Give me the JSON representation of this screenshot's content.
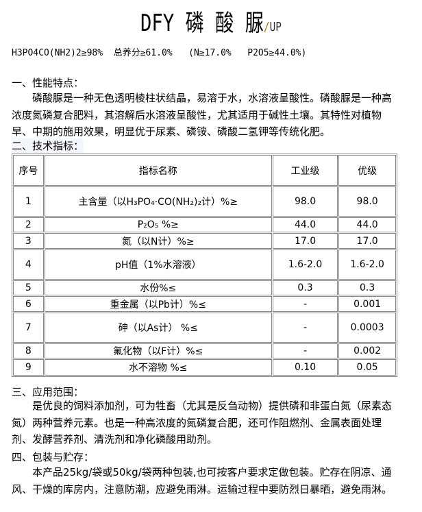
{
  "title": {
    "prefix": "DFY",
    "name": "磷 酸 脲",
    "suffix": "UP"
  },
  "spec_line": "H3PO4CO(NH2)2≥98%  总养分≥61.0%   (N≥17.0%   P2O5≥44.0%)",
  "sections": {
    "s1_heading": "一、性能特点：",
    "s1_text": "磷酸脲是一种无色透明棱柱状结晶，易溶于水，水溶液呈酸性。磷酸脲是一种高浓度氮磷复合肥料，其溶解后水溶液呈酸性，尤其适用于碱性土壤。其特性对植物早、中期的施用效果，明显优于尿素、磷铵、磷酸二氢钾等传统化肥。",
    "s2_heading": "二、技术指标：",
    "s3_heading": "三、应用范围：",
    "s3_text": "是优良的饲料添加剂，可为牲畜（尤其是反刍动物）提供磷和非蛋白氮（尿素态氮）两种营养元素。也是一种高浓度的氮磷复合肥，还可作阻燃剂、金属表面处理剂、发酵营养剂、清洗剂和净化磷酸用助剂。",
    "s4_heading": "四、包装与贮存：",
    "s4_text": "本产品25kg/袋或50kg/袋两种包装,也可按客户要求定做包装。贮存在阴凉、通风、干燥的库房内，注意防潮，应避免雨淋。运输过程中要防烈日暴晒，避免雨淋。"
  },
  "table": {
    "headers": [
      "序号",
      "指标名称",
      "工业级",
      "优级"
    ],
    "rows": [
      [
        "1",
        "主含量（以H₃PO₄·CO(NH₂)₂计）%≥",
        "98.0",
        "98.0"
      ],
      [
        "2",
        "P₂O₅  %≥",
        "44.0",
        "44.0"
      ],
      [
        "3",
        "氮（以N计）%≥",
        "17.0",
        "17.0"
      ],
      [
        "4",
        "pH值（1%水溶液）",
        "1.6-2.0",
        "1.6-2.0"
      ],
      [
        "5",
        "水份%≤",
        "0.3",
        "0.3"
      ],
      [
        "6",
        "重金属（以Pb计）%≤",
        "-",
        "0.001"
      ],
      [
        "7",
        "砷（以As计）  %≤",
        "-",
        "0.0003"
      ],
      [
        "8",
        "氟化物（以F计）%≤",
        "-",
        "0.002"
      ],
      [
        "9",
        "水不溶物  %≤",
        "0.10",
        "0.05"
      ]
    ]
  }
}
